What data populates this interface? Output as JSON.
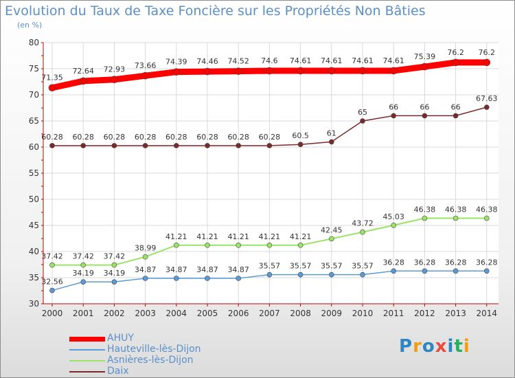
{
  "title": "Evolution du Taux de Taxe Foncière sur les Propriétés Non Bâties",
  "subtitle": "(en %)",
  "logo": {
    "letters": [
      "P",
      "r",
      "o",
      "x",
      "i",
      "t",
      "i"
    ],
    "colors": [
      "#2e86c1",
      "#f39c12",
      "#2e86c1",
      "#e74c3c",
      "#2e86c1",
      "#27ae60",
      "#f39c12"
    ]
  },
  "chart_data": {
    "type": "line",
    "x": [
      "2000",
      "2001",
      "2002",
      "2003",
      "2004",
      "2005",
      "2006",
      "2007",
      "2008",
      "2009",
      "2010",
      "2011",
      "2012",
      "2013",
      "2014"
    ],
    "ylim": [
      30,
      80
    ],
    "yticks": [
      30,
      35,
      40,
      45,
      50,
      55,
      60,
      65,
      70,
      75,
      80
    ],
    "grid": true,
    "series": [
      {
        "name": "AHUY",
        "color": "#ff0000",
        "values": [
          71.35,
          72.64,
          72.93,
          73.66,
          74.39,
          74.46,
          74.52,
          74.6,
          74.61,
          74.61,
          74.61,
          74.61,
          75.39,
          76.2,
          76.2
        ],
        "labels": [
          "71.35",
          "72.64",
          "72.93",
          "73.66",
          "74.39",
          "74.46",
          "74.52",
          "74.6",
          "74.61",
          "74.61",
          "74.61",
          "74.61",
          "75.39",
          "76.2",
          "76.2"
        ]
      },
      {
        "name": "Hauteville-lès-Dijon",
        "color": "#5b9bd5",
        "values": [
          32.56,
          34.19,
          34.19,
          34.87,
          34.87,
          34.87,
          34.87,
          35.57,
          35.57,
          35.57,
          35.57,
          36.28,
          36.28,
          36.28,
          36.28
        ],
        "labels": [
          "32.56",
          "34.19",
          "34.19",
          "34.87",
          "34.87",
          "34.87",
          "34.87",
          "35.57",
          "35.57",
          "35.57",
          "35.57",
          "36.28",
          "36.28",
          "36.28",
          "36.28"
        ]
      },
      {
        "name": "Asnières-lès-Dijon",
        "color": "#9be366",
        "values": [
          37.42,
          37.42,
          37.42,
          38.99,
          41.21,
          41.21,
          41.21,
          41.21,
          41.21,
          42.45,
          43.72,
          45.03,
          46.38,
          46.38,
          46.38
        ],
        "labels": [
          "37.42",
          "37.42",
          "37.42",
          "38.99",
          "41.21",
          "41.21",
          "41.21",
          "41.21",
          "41.21",
          "42.45",
          "43.72",
          "45.03",
          "46.38",
          "46.38",
          "46.38"
        ]
      },
      {
        "name": "Daix",
        "color": "#7a2a2a",
        "values": [
          60.28,
          60.28,
          60.28,
          60.28,
          60.28,
          60.28,
          60.28,
          60.28,
          60.5,
          61,
          65,
          66,
          66,
          66,
          67.63
        ],
        "labels": [
          "60.28",
          "60.28",
          "60.28",
          "60.28",
          "60.28",
          "60.28",
          "60.28",
          "60.28",
          "60.5",
          "61",
          "65",
          "66",
          "66",
          "66",
          "67.63"
        ]
      }
    ]
  }
}
